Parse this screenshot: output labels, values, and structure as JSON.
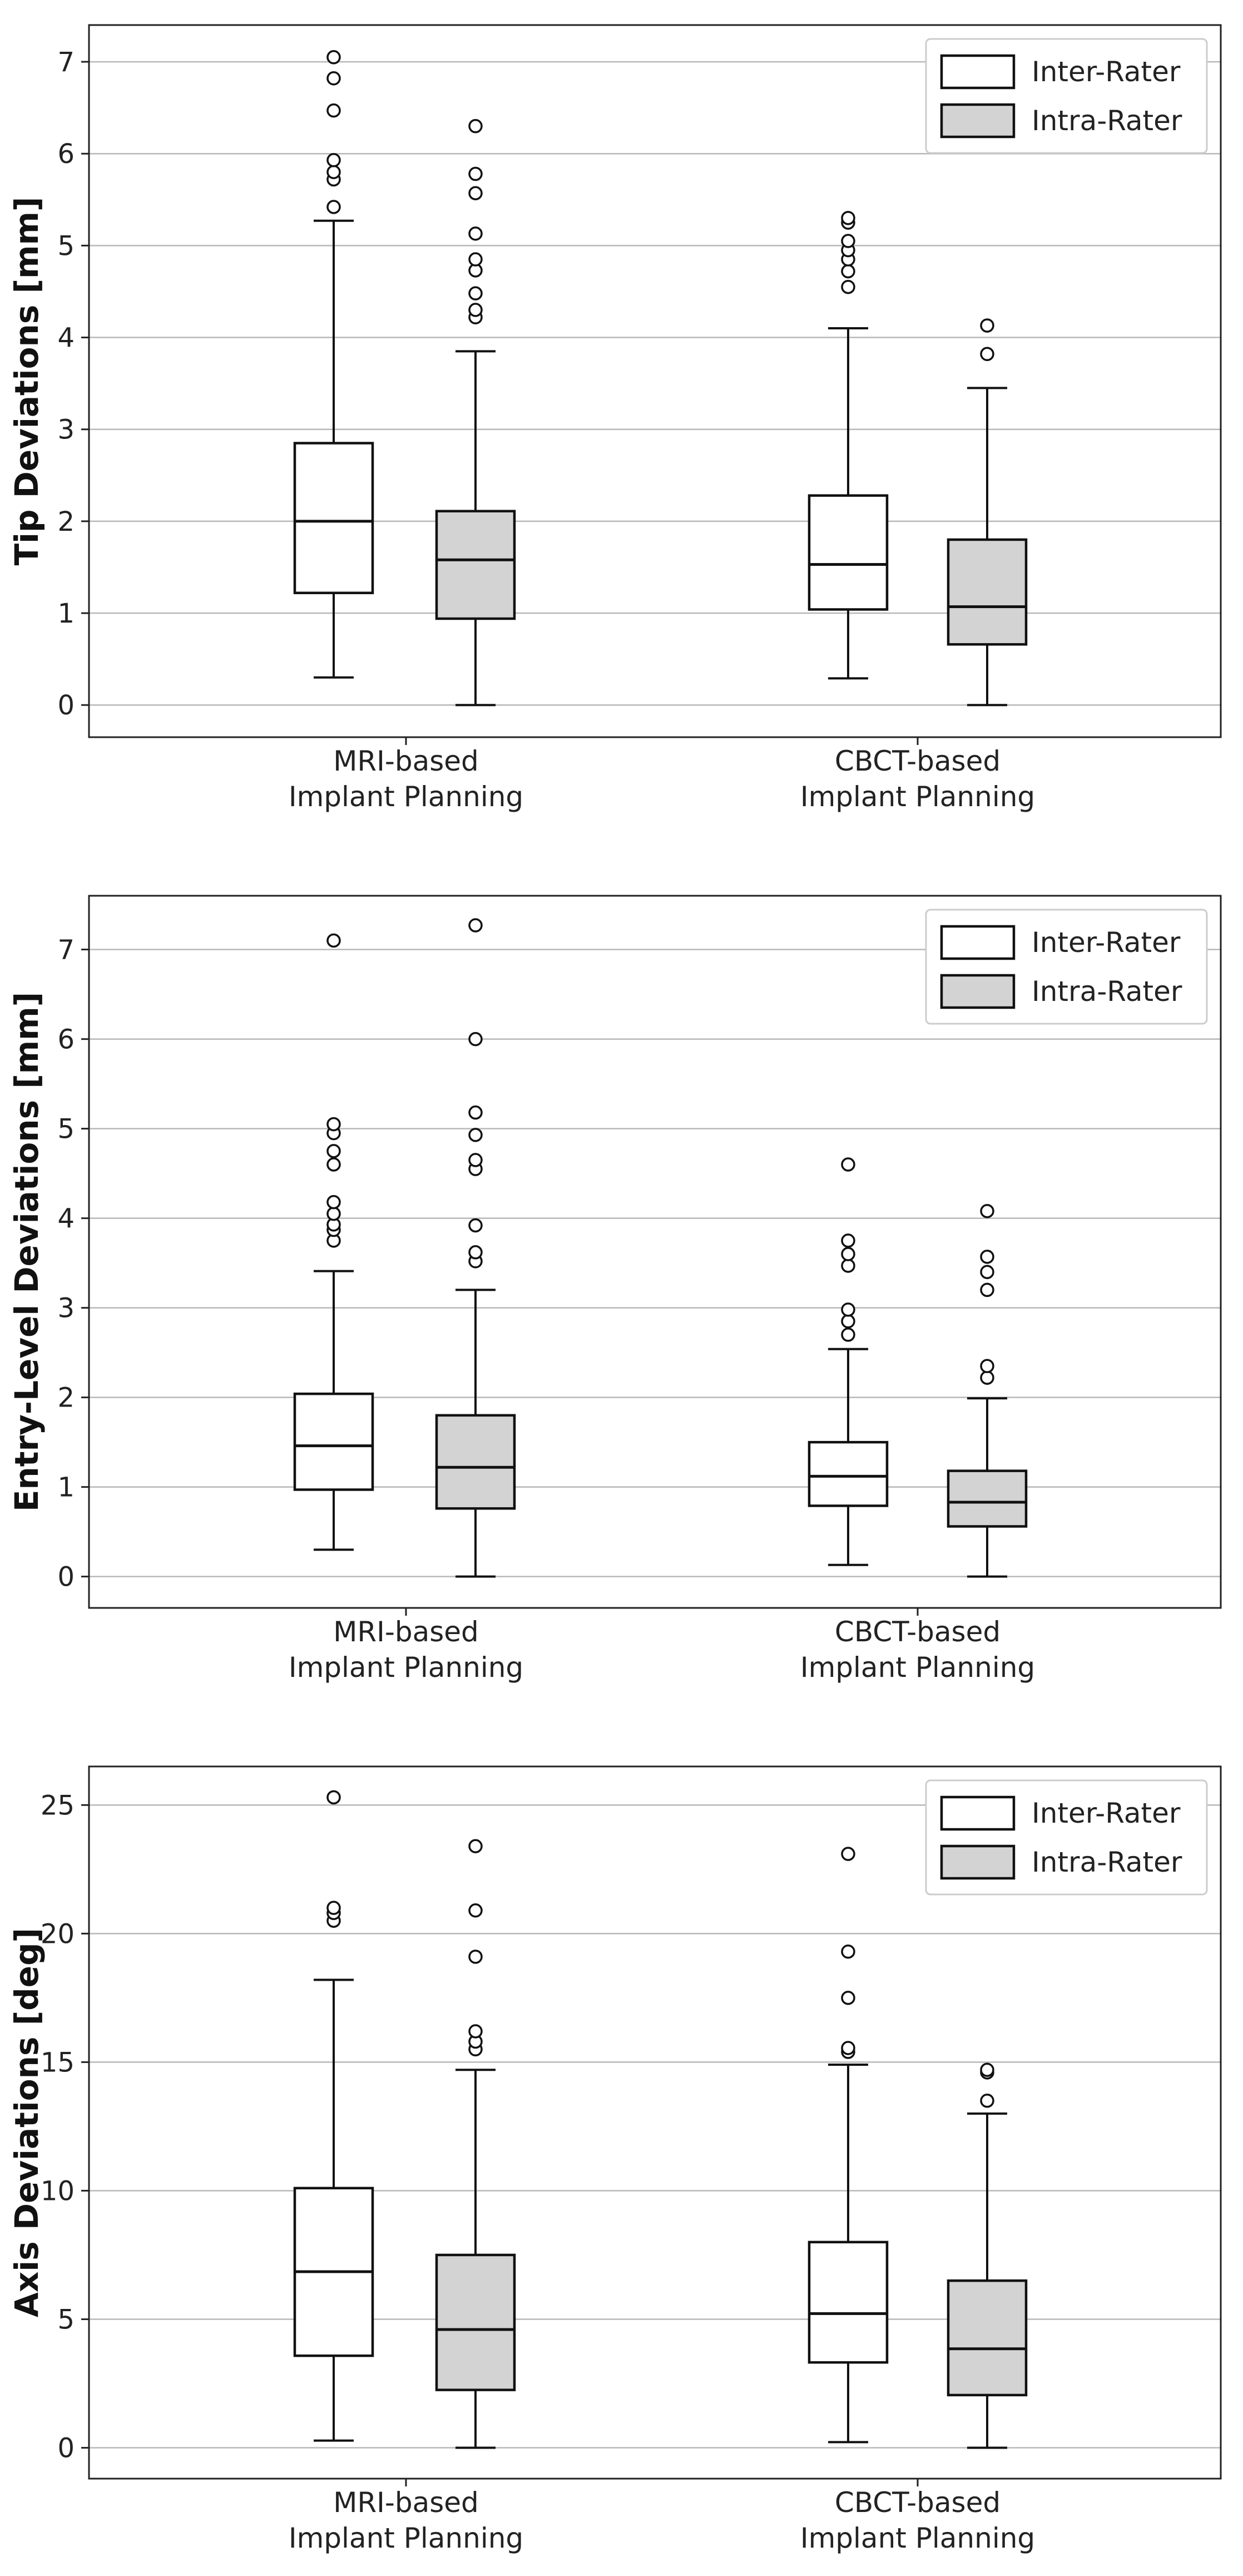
{
  "chart_data": [
    {
      "type": "box",
      "ylabel": "Tip Deviations [mm]",
      "ylim": [
        -0.35,
        7.4
      ],
      "yticks": [
        "0",
        "1",
        "2",
        "3",
        "4",
        "5",
        "6",
        "7"
      ],
      "categories": [
        "MRI-based\nImplant Planning",
        "CBCT-based\nImplant Planning"
      ],
      "legend": [
        "Inter-Rater",
        "Intra-Rater"
      ],
      "legend_position": "top-right",
      "colors": {
        "inter": "#ffffff",
        "intra": "#d3d3d3"
      },
      "groups": [
        {
          "category": "MRI-based\nImplant Planning",
          "series": "Inter-Rater",
          "min": 0.3,
          "q1": 1.22,
          "median": 2.0,
          "q3": 2.85,
          "max": 5.27,
          "outliers": [
            5.42,
            5.72,
            5.8,
            5.93,
            6.47,
            6.82,
            7.05
          ]
        },
        {
          "category": "MRI-based\nImplant Planning",
          "series": "Intra-Rater",
          "min": 0.0,
          "q1": 0.94,
          "median": 1.58,
          "q3": 2.11,
          "max": 3.85,
          "outliers": [
            4.22,
            4.3,
            4.48,
            4.73,
            4.85,
            5.13,
            5.57,
            5.78,
            6.3
          ]
        },
        {
          "category": "CBCT-based\nImplant Planning",
          "series": "Inter-Rater",
          "min": 0.29,
          "q1": 1.04,
          "median": 1.53,
          "q3": 2.28,
          "max": 4.1,
          "outliers": [
            4.55,
            4.72,
            4.85,
            4.95,
            5.05,
            5.25,
            5.3
          ]
        },
        {
          "category": "CBCT-based\nImplant Planning",
          "series": "Intra-Rater",
          "min": 0.0,
          "q1": 0.66,
          "median": 1.07,
          "q3": 1.8,
          "max": 3.45,
          "outliers": [
            3.82,
            4.13
          ]
        }
      ]
    },
    {
      "type": "box",
      "ylabel": "Entry-Level Deviations [mm]",
      "ylim": [
        -0.35,
        7.6
      ],
      "yticks": [
        "0",
        "1",
        "2",
        "3",
        "4",
        "5",
        "6",
        "7"
      ],
      "categories": [
        "MRI-based\nImplant Planning",
        "CBCT-based\nImplant Planning"
      ],
      "legend": [
        "Inter-Rater",
        "Intra-Rater"
      ],
      "legend_position": "top-right",
      "colors": {
        "inter": "#ffffff",
        "intra": "#d3d3d3"
      },
      "groups": [
        {
          "category": "MRI-based\nImplant Planning",
          "series": "Inter-Rater",
          "min": 0.3,
          "q1": 0.97,
          "median": 1.46,
          "q3": 2.04,
          "max": 3.41,
          "outliers": [
            3.75,
            3.87,
            3.93,
            4.05,
            4.18,
            4.6,
            4.75,
            4.95,
            5.05,
            7.1
          ]
        },
        {
          "category": "MRI-based\nImplant Planning",
          "series": "Intra-Rater",
          "min": 0.0,
          "q1": 0.76,
          "median": 1.22,
          "q3": 1.8,
          "max": 3.2,
          "outliers": [
            3.52,
            3.62,
            3.92,
            4.55,
            4.65,
            4.93,
            5.18,
            6.0,
            7.27
          ]
        },
        {
          "category": "CBCT-based\nImplant Planning",
          "series": "Inter-Rater",
          "min": 0.13,
          "q1": 0.79,
          "median": 1.12,
          "q3": 1.5,
          "max": 2.54,
          "outliers": [
            2.7,
            2.85,
            2.98,
            3.47,
            3.6,
            3.75,
            4.6
          ]
        },
        {
          "category": "CBCT-based\nImplant Planning",
          "series": "Intra-Rater",
          "min": 0.0,
          "q1": 0.56,
          "median": 0.83,
          "q3": 1.18,
          "max": 1.99,
          "outliers": [
            2.22,
            2.35,
            3.2,
            3.4,
            3.57,
            4.08
          ]
        }
      ]
    },
    {
      "type": "box",
      "ylabel": "Axis Deviations [deg]",
      "ylim": [
        -1.2,
        26.5
      ],
      "yticks": [
        "0",
        "5",
        "10",
        "15",
        "20",
        "25"
      ],
      "categories": [
        "MRI-based\nImplant Planning",
        "CBCT-based\nImplant Planning"
      ],
      "legend": [
        "Inter-Rater",
        "Intra-Rater"
      ],
      "legend_position": "top-right",
      "colors": {
        "inter": "#ffffff",
        "intra": "#d3d3d3"
      },
      "groups": [
        {
          "category": "MRI-based\nImplant Planning",
          "series": "Inter-Rater",
          "min": 0.28,
          "q1": 3.58,
          "median": 6.85,
          "q3": 10.1,
          "max": 18.2,
          "outliers": [
            20.5,
            20.8,
            21.0,
            25.3
          ]
        },
        {
          "category": "MRI-based\nImplant Planning",
          "series": "Intra-Rater",
          "min": 0.0,
          "q1": 2.25,
          "median": 4.6,
          "q3": 7.5,
          "max": 14.7,
          "outliers": [
            15.5,
            15.8,
            16.2,
            19.1,
            20.9,
            23.4
          ]
        },
        {
          "category": "CBCT-based\nImplant Planning",
          "series": "Inter-Rater",
          "min": 0.22,
          "q1": 3.32,
          "median": 5.22,
          "q3": 8.0,
          "max": 14.9,
          "outliers": [
            15.4,
            15.55,
            17.5,
            19.3,
            23.1
          ]
        },
        {
          "category": "CBCT-based\nImplant Planning",
          "series": "Intra-Rater",
          "min": 0.0,
          "q1": 2.05,
          "median": 3.85,
          "q3": 6.5,
          "max": 13.0,
          "outliers": [
            13.5,
            14.6,
            14.7
          ]
        }
      ]
    }
  ]
}
